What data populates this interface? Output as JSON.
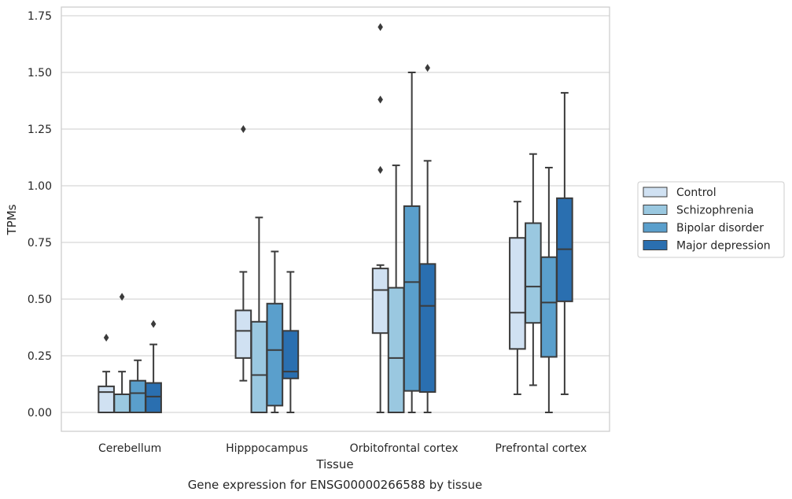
{
  "chart_data": {
    "type": "box",
    "title": "Gene expression for ENSG00000266588 by tissue",
    "xlabel": "Tissue",
    "ylabel": "TPMs",
    "ylim": [
      -0.08,
      1.78
    ],
    "yticks": [
      "0.00",
      "0.25",
      "0.50",
      "0.75",
      "1.00",
      "1.25",
      "1.50",
      "1.75"
    ],
    "grid": true,
    "legend_position": "right",
    "categories": [
      "Cerebellum",
      "Hipppocampus",
      "Orbitofrontal cortex",
      "Prefrontal cortex"
    ],
    "series": [
      {
        "name": "Control",
        "color": "#d0e1f2",
        "boxes": [
          {
            "whislo": 0.0,
            "q1": 0.0,
            "med": 0.09,
            "q3": 0.115,
            "whishi": 0.18,
            "fliers": [
              0.33
            ]
          },
          {
            "whislo": 0.14,
            "q1": 0.24,
            "med": 0.36,
            "q3": 0.45,
            "whishi": 0.62,
            "fliers": [
              1.25
            ]
          },
          {
            "whislo": 0.0,
            "q1": 0.35,
            "med": 0.54,
            "q3": 0.635,
            "whishi": 0.65,
            "fliers": [
              1.07,
              1.38,
              1.7
            ]
          },
          {
            "whislo": 0.08,
            "q1": 0.28,
            "med": 0.44,
            "q3": 0.77,
            "whishi": 0.93,
            "fliers": []
          }
        ]
      },
      {
        "name": "Schizophrenia",
        "color": "#9ac8e0",
        "boxes": [
          {
            "whislo": 0.0,
            "q1": 0.0,
            "med": 0.08,
            "q3": 0.08,
            "whishi": 0.18,
            "fliers": [
              0.51
            ]
          },
          {
            "whislo": 0.0,
            "q1": 0.0,
            "med": 0.165,
            "q3": 0.4,
            "whishi": 0.86,
            "fliers": []
          },
          {
            "whislo": 0.0,
            "q1": 0.0,
            "med": 0.24,
            "q3": 0.55,
            "whishi": 1.09,
            "fliers": []
          },
          {
            "whislo": 0.12,
            "q1": 0.395,
            "med": 0.555,
            "q3": 0.835,
            "whishi": 1.14,
            "fliers": []
          }
        ]
      },
      {
        "name": "Bipolar disorder",
        "color": "#5a9fcc",
        "boxes": [
          {
            "whislo": 0.0,
            "q1": 0.0,
            "med": 0.085,
            "q3": 0.14,
            "whishi": 0.23,
            "fliers": []
          },
          {
            "whislo": 0.0,
            "q1": 0.03,
            "med": 0.275,
            "q3": 0.48,
            "whishi": 0.71,
            "fliers": []
          },
          {
            "whislo": 0.0,
            "q1": 0.095,
            "med": 0.575,
            "q3": 0.91,
            "whishi": 1.5,
            "fliers": []
          },
          {
            "whislo": 0.0,
            "q1": 0.245,
            "med": 0.485,
            "q3": 0.685,
            "whishi": 1.08,
            "fliers": []
          }
        ]
      },
      {
        "name": "Major depression",
        "color": "#2a6fb0",
        "boxes": [
          {
            "whislo": 0.0,
            "q1": 0.0,
            "med": 0.07,
            "q3": 0.13,
            "whishi": 0.3,
            "fliers": [
              0.39
            ]
          },
          {
            "whislo": 0.0,
            "q1": 0.15,
            "med": 0.18,
            "q3": 0.36,
            "whishi": 0.62,
            "fliers": []
          },
          {
            "whislo": 0.0,
            "q1": 0.09,
            "med": 0.47,
            "q3": 0.655,
            "whishi": 1.11,
            "fliers": [
              1.52
            ]
          },
          {
            "whislo": 0.08,
            "q1": 0.49,
            "med": 0.72,
            "q3": 0.945,
            "whishi": 1.41,
            "fliers": []
          }
        ]
      }
    ]
  }
}
